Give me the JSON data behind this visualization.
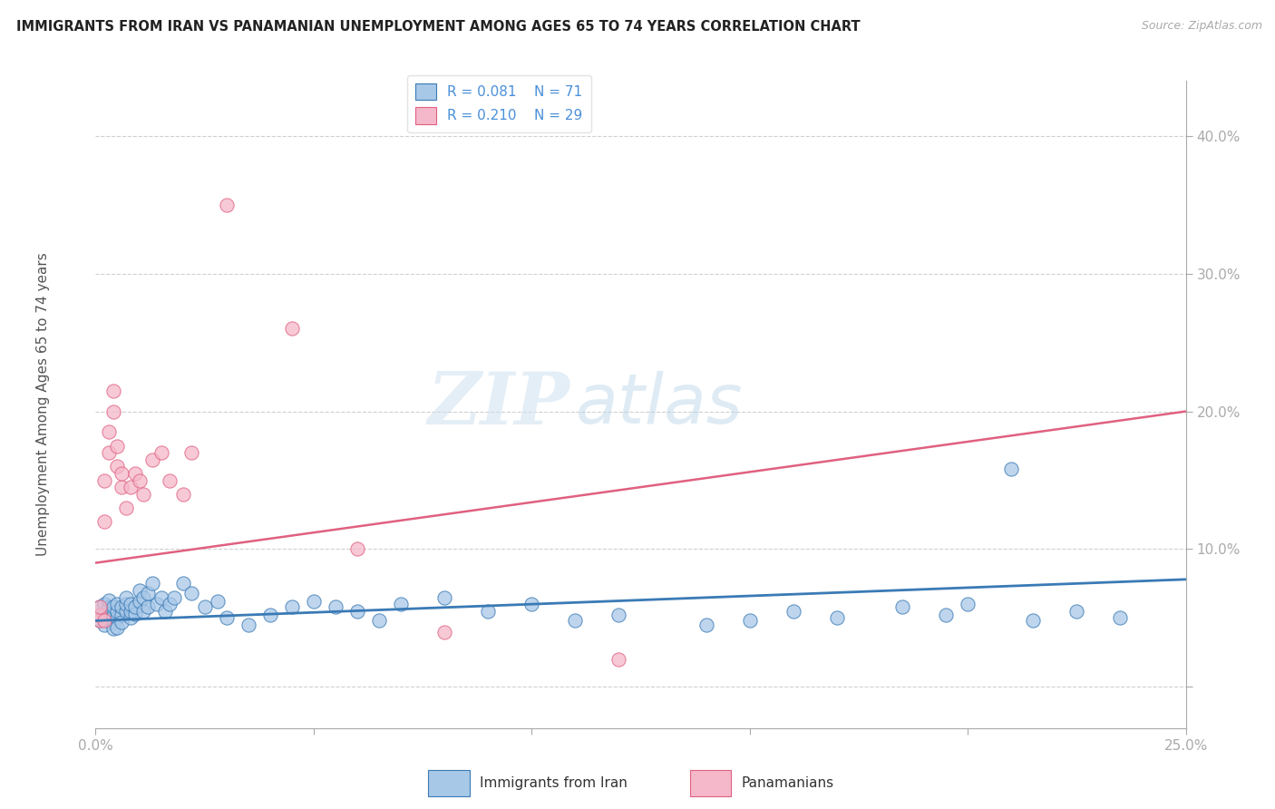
{
  "title": "IMMIGRANTS FROM IRAN VS PANAMANIAN UNEMPLOYMENT AMONG AGES 65 TO 74 YEARS CORRELATION CHART",
  "source": "Source: ZipAtlas.com",
  "ylabel": "Unemployment Among Ages 65 to 74 years",
  "legend_label_blue": "Immigrants from Iran",
  "legend_label_pink": "Panamanians",
  "R_blue": "0.081",
  "N_blue": "71",
  "R_pink": "0.210",
  "N_pink": "29",
  "xlim": [
    0,
    0.25
  ],
  "ylim": [
    -0.03,
    0.44
  ],
  "right_yticks": [
    0.0,
    0.1,
    0.2,
    0.3,
    0.4
  ],
  "right_yticklabels": [
    "",
    "10.0%",
    "20.0%",
    "30.0%",
    "40.0%"
  ],
  "bottom_xticks": [
    0.0,
    0.05,
    0.1,
    0.15,
    0.2,
    0.25
  ],
  "bottom_xticklabels": [
    "0.0%",
    "",
    "",
    "",
    "",
    "25.0%"
  ],
  "blue_line_x": [
    0.0,
    0.25
  ],
  "blue_line_y": [
    0.048,
    0.078
  ],
  "pink_line_x": [
    0.0,
    0.25
  ],
  "pink_line_y": [
    0.09,
    0.2
  ],
  "color_blue_scatter": "#a8c8e8",
  "color_pink_scatter": "#f5b8ca",
  "color_blue_line": "#3a7ab5",
  "color_pink_line": "#e06080",
  "color_axis_text": "#4a90d9",
  "blue_scatter_x": [
    0.001,
    0.001,
    0.001,
    0.002,
    0.002,
    0.002,
    0.002,
    0.003,
    0.003,
    0.003,
    0.003,
    0.004,
    0.004,
    0.004,
    0.004,
    0.005,
    0.005,
    0.005,
    0.005,
    0.006,
    0.006,
    0.006,
    0.007,
    0.007,
    0.007,
    0.008,
    0.008,
    0.008,
    0.009,
    0.009,
    0.01,
    0.01,
    0.011,
    0.011,
    0.012,
    0.012,
    0.013,
    0.014,
    0.015,
    0.016,
    0.017,
    0.018,
    0.02,
    0.022,
    0.025,
    0.028,
    0.03,
    0.035,
    0.04,
    0.045,
    0.05,
    0.055,
    0.06,
    0.065,
    0.07,
    0.08,
    0.09,
    0.1,
    0.11,
    0.12,
    0.14,
    0.15,
    0.16,
    0.17,
    0.185,
    0.195,
    0.2,
    0.21,
    0.215,
    0.225,
    0.235
  ],
  "blue_scatter_y": [
    0.048,
    0.052,
    0.058,
    0.045,
    0.05,
    0.055,
    0.06,
    0.048,
    0.053,
    0.058,
    0.063,
    0.047,
    0.052,
    0.058,
    0.042,
    0.05,
    0.055,
    0.06,
    0.043,
    0.052,
    0.058,
    0.047,
    0.055,
    0.06,
    0.065,
    0.05,
    0.055,
    0.06,
    0.053,
    0.058,
    0.062,
    0.07,
    0.055,
    0.065,
    0.058,
    0.068,
    0.075,
    0.06,
    0.065,
    0.055,
    0.06,
    0.065,
    0.075,
    0.068,
    0.058,
    0.062,
    0.05,
    0.045,
    0.052,
    0.058,
    0.062,
    0.058,
    0.055,
    0.048,
    0.06,
    0.065,
    0.055,
    0.06,
    0.048,
    0.052,
    0.045,
    0.048,
    0.055,
    0.05,
    0.058,
    0.052,
    0.06,
    0.158,
    0.048,
    0.055,
    0.05
  ],
  "pink_scatter_x": [
    0.001,
    0.001,
    0.001,
    0.002,
    0.002,
    0.002,
    0.003,
    0.003,
    0.004,
    0.004,
    0.005,
    0.005,
    0.006,
    0.006,
    0.007,
    0.008,
    0.009,
    0.01,
    0.011,
    0.013,
    0.015,
    0.017,
    0.02,
    0.022,
    0.03,
    0.045,
    0.06,
    0.08,
    0.12
  ],
  "pink_scatter_y": [
    0.048,
    0.052,
    0.058,
    0.048,
    0.12,
    0.15,
    0.17,
    0.185,
    0.2,
    0.215,
    0.175,
    0.16,
    0.145,
    0.155,
    0.13,
    0.145,
    0.155,
    0.15,
    0.14,
    0.165,
    0.17,
    0.15,
    0.14,
    0.17,
    0.35,
    0.26,
    0.1,
    0.04,
    0.02
  ],
  "watermark_zip": "ZIP",
  "watermark_atlas": "atlas",
  "background_color": "#ffffff",
  "grid_color": "#d0d0d0"
}
